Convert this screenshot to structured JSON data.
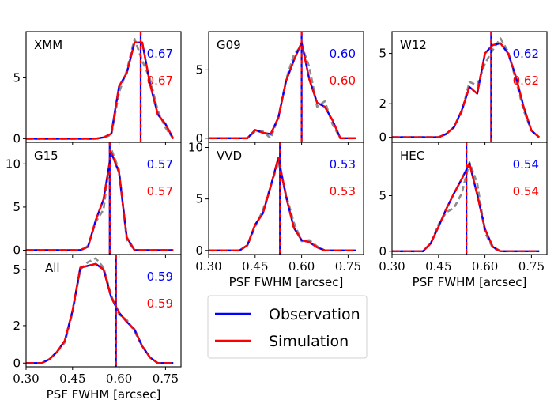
{
  "chart_data": {
    "type": "line",
    "xlabel": "PSF FWHM [arcsec]",
    "xlim": [
      0.3,
      0.8
    ],
    "xticks": [
      0.3,
      0.45,
      0.6,
      0.75
    ],
    "xtick_labels": [
      "0.30",
      "0.45",
      "0.60",
      "0.75"
    ],
    "x": [
      0.3,
      0.325,
      0.35,
      0.375,
      0.4,
      0.425,
      0.45,
      0.475,
      0.5,
      0.525,
      0.55,
      0.575,
      0.6,
      0.625,
      0.65,
      0.675,
      0.7,
      0.725,
      0.75,
      0.775
    ],
    "colors": {
      "observation": "#0000ff",
      "simulation": "#ff0000",
      "alternative": "#8c8c8c"
    },
    "legend": {
      "position": "center",
      "entries": [
        "Observation",
        "Simulation"
      ]
    },
    "panels": [
      {
        "name": "XMM",
        "ylim": [
          -0.3,
          8.8
        ],
        "yticks": [
          0,
          5
        ],
        "ytick_labels": [
          "0",
          "5"
        ],
        "obs_median": "0.67",
        "sim_median": "0.67",
        "median": 0.67,
        "observation": [
          0,
          0,
          0,
          0,
          0,
          0,
          0,
          0,
          0,
          0,
          0.1,
          0.4,
          4.3,
          5.4,
          7.9,
          7.9,
          4.5,
          2.0,
          1.2,
          0
        ],
        "simulation": [
          0,
          0,
          0,
          0,
          0,
          0,
          0,
          0,
          0,
          0,
          0.1,
          0.4,
          4.3,
          5.4,
          7.9,
          7.9,
          4.5,
          2.0,
          1.2,
          0
        ],
        "alternative": [
          0,
          0,
          0,
          0,
          0,
          0,
          0,
          0,
          0,
          0,
          0.1,
          0.3,
          3.8,
          5.6,
          8.2,
          6.4,
          4.9,
          2.3,
          0.9,
          0
        ]
      },
      {
        "name": "G09",
        "ylim": [
          -0.3,
          7.8
        ],
        "yticks": [
          0,
          5
        ],
        "ytick_labels": [
          "0",
          "5"
        ],
        "obs_median": "0.60",
        "sim_median": "0.60",
        "median": 0.6,
        "observation": [
          0,
          0,
          0,
          0,
          0,
          0,
          0.6,
          0.4,
          0.3,
          1.5,
          4.2,
          5.7,
          7.0,
          4.3,
          2.6,
          2.3,
          1.3,
          0,
          0,
          0
        ],
        "simulation": [
          0,
          0,
          0,
          0,
          0,
          0,
          0.6,
          0.4,
          0.3,
          1.5,
          4.2,
          5.7,
          7.0,
          4.3,
          2.6,
          2.3,
          1.3,
          0,
          0,
          0
        ],
        "alternative": [
          0,
          0,
          0,
          0,
          0,
          0,
          0.5,
          0.5,
          0,
          1.5,
          4.3,
          6.1,
          6.8,
          5.2,
          2.3,
          2.7,
          1.0,
          0,
          0,
          0
        ]
      },
      {
        "name": "W12",
        "ylim": [
          -0.3,
          6.3
        ],
        "yticks": [
          0,
          2,
          5
        ],
        "ytick_labels": [
          "0",
          "2",
          "5"
        ],
        "obs_median": "0.62",
        "sim_median": "0.62",
        "median": 0.62,
        "observation": [
          0,
          0,
          0,
          0,
          0,
          0,
          0,
          0.2,
          0.6,
          1.6,
          3.0,
          2.6,
          5.0,
          5.5,
          5.6,
          5.0,
          3.6,
          1.8,
          0.4,
          0
        ],
        "simulation": [
          0,
          0,
          0,
          0,
          0,
          0,
          0,
          0.2,
          0.6,
          1.6,
          3.0,
          2.6,
          5.0,
          5.5,
          5.6,
          5.0,
          3.6,
          1.8,
          0.4,
          0
        ],
        "alternative": [
          0,
          0,
          0,
          0,
          0,
          0,
          0,
          0.2,
          0.6,
          1.5,
          3.3,
          3.1,
          4.4,
          5.2,
          5.9,
          5.1,
          3.4,
          1.6,
          0.4,
          0
        ]
      },
      {
        "name": "G15",
        "ylim": [
          -0.5,
          12.5
        ],
        "yticks": [
          0,
          5,
          10
        ],
        "ytick_labels": [
          "0",
          "5",
          "10"
        ],
        "obs_median": "0.57",
        "sim_median": "0.57",
        "median": 0.57,
        "observation": [
          0,
          0,
          0,
          0,
          0,
          0,
          0,
          0,
          0.4,
          3.5,
          5.9,
          11.3,
          9.0,
          1.5,
          0,
          0,
          0,
          0,
          0,
          0
        ],
        "simulation": [
          0,
          0,
          0,
          0,
          0,
          0,
          0,
          0,
          0.4,
          3.5,
          5.9,
          11.3,
          9.0,
          1.5,
          0,
          0,
          0,
          0,
          0,
          0
        ],
        "alternative": [
          0,
          0,
          0,
          0,
          0,
          0,
          0,
          0,
          0.5,
          3.3,
          4.7,
          11.7,
          9.3,
          1.2,
          0,
          0,
          0,
          0,
          0,
          0
        ]
      },
      {
        "name": "VVD",
        "ylim": [
          -0.4,
          10.5
        ],
        "yticks": [
          0,
          5,
          10
        ],
        "ytick_labels": [
          "0",
          "5",
          "10"
        ],
        "obs_median": "0.53",
        "sim_median": "0.53",
        "median": 0.53,
        "observation": [
          0,
          0,
          0,
          0,
          0,
          0.5,
          2.5,
          3.6,
          6.2,
          9.0,
          5.2,
          2.2,
          1.0,
          0.8,
          0.3,
          0,
          0,
          0,
          0,
          0
        ],
        "simulation": [
          0,
          0,
          0,
          0,
          0,
          0.5,
          2.5,
          3.6,
          6.2,
          9.0,
          5.2,
          2.2,
          1.0,
          0.8,
          0.3,
          0,
          0,
          0,
          0,
          0
        ],
        "alternative": [
          0,
          0,
          0,
          0,
          0,
          0.5,
          2.3,
          3.9,
          6.2,
          8.6,
          5.4,
          2.7,
          0.9,
          1.0,
          0.4,
          0,
          0,
          0,
          0,
          0
        ]
      },
      {
        "name": "HEC",
        "ylim": [
          -0.3,
          9.8
        ],
        "yticks": [
          0,
          5
        ],
        "ytick_labels": [
          "0",
          "5"
        ],
        "obs_median": "0.54",
        "sim_median": "0.54",
        "median": 0.54,
        "observation": [
          0,
          0,
          0,
          0,
          0,
          0.7,
          2.2,
          3.8,
          5.2,
          6.5,
          7.9,
          5.1,
          2.0,
          0.4,
          0,
          0,
          0,
          0,
          0,
          0
        ],
        "simulation": [
          0,
          0,
          0,
          0,
          0,
          0.7,
          2.2,
          3.8,
          5.2,
          6.5,
          7.9,
          5.1,
          2.0,
          0.4,
          0,
          0,
          0,
          0,
          0,
          0
        ],
        "alternative": [
          0,
          0,
          0,
          0,
          0,
          0.7,
          2.4,
          3.5,
          3.9,
          5.2,
          8.0,
          6.1,
          1.7,
          0.3,
          0,
          0,
          0,
          0,
          0,
          0
        ]
      },
      {
        "name": "All",
        "ylim": [
          -0.2,
          5.8
        ],
        "yticks": [
          0,
          2,
          5
        ],
        "ytick_labels": [
          "0",
          "2",
          "5"
        ],
        "obs_median": "0.59",
        "sim_median": "0.59",
        "median": 0.59,
        "observation": [
          0,
          0,
          0,
          0.2,
          0.6,
          1.2,
          2.8,
          5.1,
          5.2,
          5.3,
          5.0,
          3.5,
          2.7,
          2.2,
          1.8,
          0.9,
          0.3,
          0,
          0,
          0
        ],
        "simulation": [
          0,
          0,
          0,
          0.2,
          0.6,
          1.2,
          2.8,
          5.1,
          5.2,
          5.3,
          5.0,
          3.5,
          2.7,
          2.2,
          1.8,
          0.9,
          0.3,
          0,
          0,
          0
        ],
        "alternative": [
          0,
          0,
          0,
          0.2,
          0.6,
          1.1,
          2.7,
          5.0,
          5.4,
          5.6,
          5.1,
          3.6,
          2.6,
          2.3,
          1.7,
          0.9,
          0.3,
          0,
          0,
          0
        ]
      }
    ]
  }
}
